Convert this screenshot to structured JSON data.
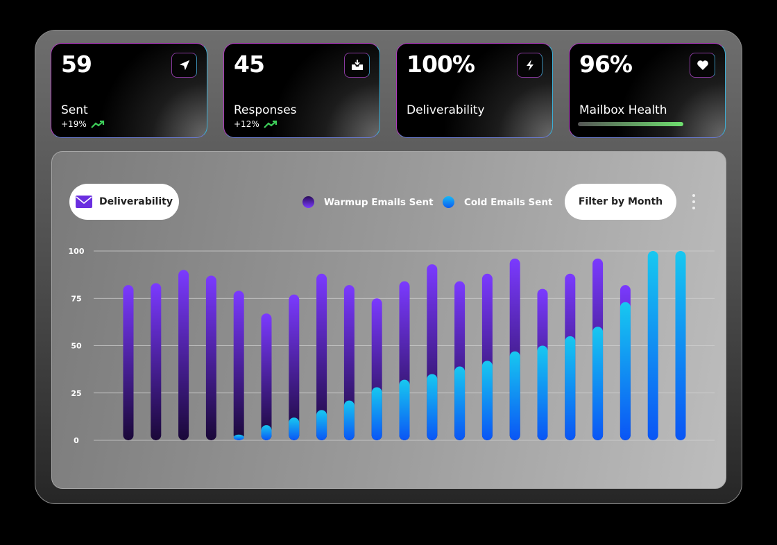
{
  "cards": [
    {
      "value": "59",
      "label": "Sent",
      "change": "+19%",
      "icon": "send-icon"
    },
    {
      "value": "45",
      "label": "Responses",
      "change": "+12%",
      "icon": "inbox-download-icon"
    },
    {
      "value": "100%",
      "label": "Deliverability",
      "icon": "lightning-icon"
    },
    {
      "value": "96%",
      "label": "Mailbox Health",
      "icon": "heart-icon",
      "health_bar_percent": 96
    }
  ],
  "chart_header": {
    "title_button": "Deliverability",
    "filter_button": "Filter by Month"
  },
  "colors": {
    "warmup": "#7b3aff",
    "cold": "#19b8f5",
    "trend_up": "#3ecf5a"
  },
  "chart_data": {
    "type": "bar",
    "ylim": [
      0,
      100
    ],
    "yticks": [
      "0",
      "25",
      "50",
      "75",
      "100"
    ],
    "grid": true,
    "legend": "top",
    "series": [
      {
        "name": "Warmup Emails Sent",
        "values": [
          82,
          83,
          90,
          87,
          79,
          67,
          77,
          88,
          82,
          75,
          84,
          93,
          84,
          88,
          96,
          80,
          88,
          96,
          82,
          0,
          0
        ]
      },
      {
        "name": "Cold Emails Sent",
        "values": [
          0,
          0,
          0,
          0,
          3,
          8,
          12,
          16,
          21,
          28,
          32,
          35,
          39,
          42,
          47,
          50,
          55,
          60,
          73,
          100,
          100
        ]
      }
    ]
  }
}
